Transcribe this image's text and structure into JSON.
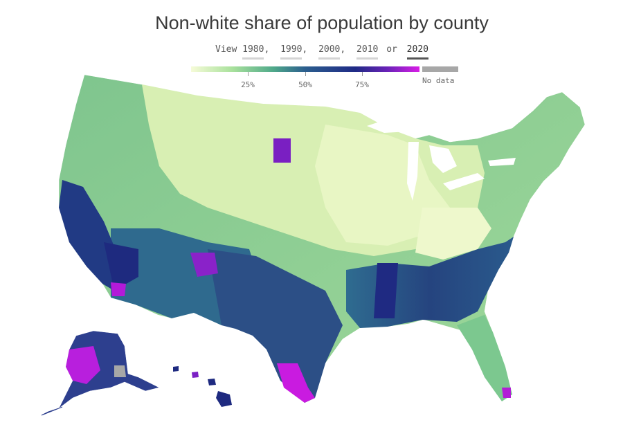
{
  "title": "Non-white share of population by county",
  "year_selector": {
    "prefix": "View",
    "years": [
      "1980",
      "1990",
      "2000",
      "2010",
      "2020"
    ],
    "conjunction": "or",
    "selected": "2020"
  },
  "legend": {
    "ticks": [
      "25%",
      "50%",
      "75%"
    ],
    "no_data_label": "No data",
    "scale_colors": [
      "#f6fbd8",
      "#a9e19c",
      "#4fa98a",
      "#2b5e8e",
      "#1f2a86",
      "#6a22b8",
      "#d81ee6"
    ],
    "no_data_color": "#a7a7a7"
  }
}
